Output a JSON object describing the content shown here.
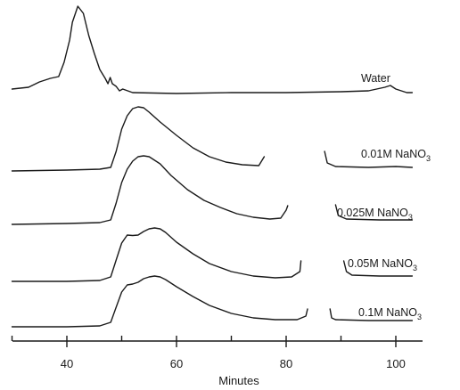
{
  "chart_data": {
    "type": "line",
    "xlabel": "Minutes",
    "ylabel": "",
    "xlim": [
      30,
      103
    ],
    "xticks": [
      40,
      60,
      80,
      100
    ],
    "minor_xticks": [
      30,
      50,
      70,
      90
    ],
    "grid": false,
    "series": [
      {
        "name": "Water",
        "label_parts": {
          "main": "Water"
        },
        "points": [
          [
            30,
            100
          ],
          [
            33,
            98
          ],
          [
            35,
            92
          ],
          [
            37,
            88
          ],
          [
            38.5,
            86
          ],
          [
            39.5,
            70
          ],
          [
            40.5,
            45
          ],
          [
            41,
            25
          ],
          [
            42,
            7
          ],
          [
            43,
            15
          ],
          [
            44,
            40
          ],
          [
            45,
            60
          ],
          [
            46,
            78
          ],
          [
            47,
            88
          ],
          [
            47.5,
            94
          ],
          [
            47.9,
            87
          ],
          [
            48.3,
            94
          ],
          [
            49,
            97
          ],
          [
            49.6,
            102
          ],
          [
            50.2,
            100
          ],
          [
            52,
            104
          ],
          [
            60,
            105
          ],
          [
            70,
            104
          ],
          [
            80,
            104
          ],
          [
            90,
            103
          ],
          [
            95,
            102
          ],
          [
            98,
            98
          ],
          [
            99,
            96
          ],
          [
            100,
            100
          ],
          [
            102,
            104
          ],
          [
            103,
            104
          ]
        ]
      },
      {
        "name": "0.01M NaNO3",
        "label_parts": {
          "main": "0.01M NaNO",
          "sub": "3"
        },
        "segments": [
          [
            [
              30,
              192
            ],
            [
              40,
              191
            ],
            [
              46,
              190
            ],
            [
              48,
              188
            ],
            [
              49,
              170
            ],
            [
              50,
              145
            ],
            [
              51,
              130
            ],
            [
              52,
              122
            ],
            [
              53,
              120
            ],
            [
              54,
              121
            ],
            [
              55,
              126
            ],
            [
              57,
              137
            ],
            [
              60,
              152
            ],
            [
              63,
              166
            ],
            [
              66,
              176
            ],
            [
              69,
              182
            ],
            [
              72,
              185
            ],
            [
              75,
              186
            ],
            [
              76,
              176
            ]
          ],
          [
            [
              87,
              170
            ],
            [
              87.5,
              183
            ],
            [
              89,
              187
            ],
            [
              95,
              188
            ],
            [
              100,
              187
            ],
            [
              103,
              188
            ]
          ]
        ]
      },
      {
        "name": "0.025M NaNO3",
        "label_parts": {
          "main": "0.025M NaNO",
          "sub": "3"
        },
        "segments": [
          [
            [
              30,
              252
            ],
            [
              40,
              251
            ],
            [
              46,
              250
            ],
            [
              48,
              247
            ],
            [
              49,
              228
            ],
            [
              50,
              205
            ],
            [
              51,
              190
            ],
            [
              52,
              181
            ],
            [
              53,
              176
            ],
            [
              54,
              175
            ],
            [
              55,
              176
            ],
            [
              57,
              184
            ],
            [
              59,
              197
            ],
            [
              62,
              213
            ],
            [
              65,
              225
            ],
            [
              68,
              233
            ],
            [
              71,
              240
            ],
            [
              74,
              244
            ],
            [
              77,
              246
            ],
            [
              79,
              245
            ],
            [
              80,
              236
            ],
            [
              80.3,
              231
            ]
          ],
          [
            [
              89,
              230
            ],
            [
              89.5,
              242
            ],
            [
              91,
              246
            ],
            [
              97,
              247
            ],
            [
              103,
              247
            ]
          ]
        ]
      },
      {
        "name": "0.05M NaNO3",
        "label_parts": {
          "main": "0.05M NaNO",
          "sub": "3"
        },
        "segments": [
          [
            [
              30,
              316
            ],
            [
              40,
              316
            ],
            [
              46,
              315
            ],
            [
              48,
              311
            ],
            [
              49,
              292
            ],
            [
              50,
              273
            ],
            [
              51,
              264
            ],
            [
              52,
              264.5
            ],
            [
              53,
              264
            ],
            [
              54,
              260
            ],
            [
              55,
              257
            ],
            [
              56,
              256
            ],
            [
              57,
              257
            ],
            [
              58,
              261
            ],
            [
              60,
              272
            ],
            [
              63,
              285
            ],
            [
              66,
              296
            ],
            [
              70,
              305
            ],
            [
              74,
              310
            ],
            [
              78,
              312
            ],
            [
              81,
              311
            ],
            [
              82.5,
              305
            ],
            [
              82.7,
              293
            ]
          ],
          [
            [
              90.5,
              293
            ],
            [
              91,
              305
            ],
            [
              92,
              309
            ],
            [
              97,
              310
            ],
            [
              103,
              310
            ]
          ]
        ]
      },
      {
        "name": "0.1M NaNO3",
        "label_parts": {
          "main": "0.1M NaNO",
          "sub": "3"
        },
        "segments": [
          [
            [
              30,
              367
            ],
            [
              40,
              367
            ],
            [
              46,
              366
            ],
            [
              48,
              362
            ],
            [
              49,
              345
            ],
            [
              50,
              328
            ],
            [
              51,
              320
            ],
            [
              52,
              319
            ],
            [
              53,
              317
            ],
            [
              54,
              313
            ],
            [
              55,
              311
            ],
            [
              56,
              310
            ],
            [
              57,
              311
            ],
            [
              58,
              314
            ],
            [
              60,
              322
            ],
            [
              63,
              333
            ],
            [
              66,
              343
            ],
            [
              70,
              352
            ],
            [
              74,
              357
            ],
            [
              78,
              359
            ],
            [
              82,
              359
            ],
            [
              83.6,
              355
            ],
            [
              83.9,
              347
            ]
          ],
          [
            [
              88,
              347
            ],
            [
              88.3,
              357
            ],
            [
              89,
              359
            ],
            [
              95,
              360
            ],
            [
              103,
              360
            ]
          ]
        ]
      }
    ],
    "annotations": []
  }
}
